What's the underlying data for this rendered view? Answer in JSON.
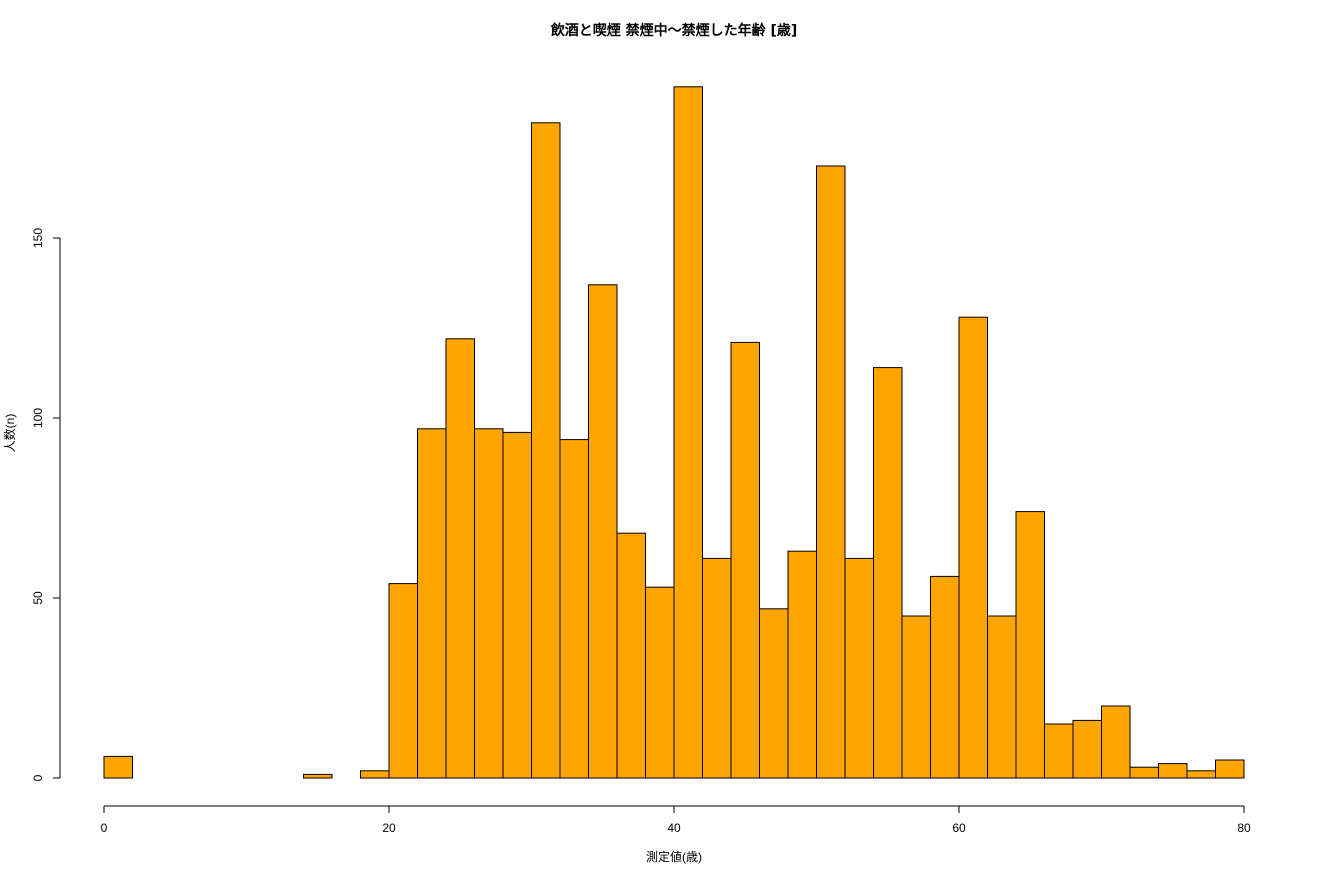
{
  "chart_data": {
    "type": "bar",
    "title": "飲酒と喫煙 禁煙中〜禁煙した年齢 [歳]",
    "xlabel": "測定値(歳)",
    "ylabel": "人数(n)",
    "bin_width": 2,
    "xlim": [
      0,
      80
    ],
    "ylim": [
      0,
      195
    ],
    "x_ticks": [
      0,
      20,
      40,
      60,
      80
    ],
    "y_ticks": [
      0,
      50,
      100,
      150
    ],
    "bins": [
      {
        "from": 0,
        "to": 2,
        "count": 6
      },
      {
        "from": 2,
        "to": 4,
        "count": 0
      },
      {
        "from": 4,
        "to": 6,
        "count": 0
      },
      {
        "from": 6,
        "to": 8,
        "count": 0
      },
      {
        "from": 8,
        "to": 10,
        "count": 0
      },
      {
        "from": 10,
        "to": 12,
        "count": 0
      },
      {
        "from": 12,
        "to": 14,
        "count": 0
      },
      {
        "from": 14,
        "to": 16,
        "count": 1
      },
      {
        "from": 16,
        "to": 18,
        "count": 0
      },
      {
        "from": 18,
        "to": 20,
        "count": 2
      },
      {
        "from": 20,
        "to": 22,
        "count": 54
      },
      {
        "from": 22,
        "to": 24,
        "count": 97
      },
      {
        "from": 24,
        "to": 26,
        "count": 122
      },
      {
        "from": 26,
        "to": 28,
        "count": 97
      },
      {
        "from": 28,
        "to": 30,
        "count": 96
      },
      {
        "from": 30,
        "to": 32,
        "count": 182
      },
      {
        "from": 32,
        "to": 34,
        "count": 94
      },
      {
        "from": 34,
        "to": 36,
        "count": 137
      },
      {
        "from": 36,
        "to": 38,
        "count": 68
      },
      {
        "from": 38,
        "to": 40,
        "count": 53
      },
      {
        "from": 40,
        "to": 42,
        "count": 192
      },
      {
        "from": 42,
        "to": 44,
        "count": 61
      },
      {
        "from": 44,
        "to": 46,
        "count": 121
      },
      {
        "from": 46,
        "to": 48,
        "count": 47
      },
      {
        "from": 48,
        "to": 50,
        "count": 63
      },
      {
        "from": 50,
        "to": 52,
        "count": 170
      },
      {
        "from": 52,
        "to": 54,
        "count": 61
      },
      {
        "from": 54,
        "to": 56,
        "count": 114
      },
      {
        "from": 56,
        "to": 58,
        "count": 45
      },
      {
        "from": 58,
        "to": 60,
        "count": 56
      },
      {
        "from": 60,
        "to": 62,
        "count": 128
      },
      {
        "from": 62,
        "to": 64,
        "count": 45
      },
      {
        "from": 64,
        "to": 66,
        "count": 74
      },
      {
        "from": 66,
        "to": 68,
        "count": 15
      },
      {
        "from": 68,
        "to": 70,
        "count": 16
      },
      {
        "from": 70,
        "to": 72,
        "count": 20
      },
      {
        "from": 72,
        "to": 74,
        "count": 3
      },
      {
        "from": 74,
        "to": 76,
        "count": 4
      },
      {
        "from": 76,
        "to": 78,
        "count": 2
      },
      {
        "from": 78,
        "to": 80,
        "count": 5
      }
    ],
    "grid": false,
    "legend": "none",
    "colors": {
      "bar_fill": "#FFA500",
      "bar_stroke": "#000000",
      "axis": "#000000"
    }
  }
}
